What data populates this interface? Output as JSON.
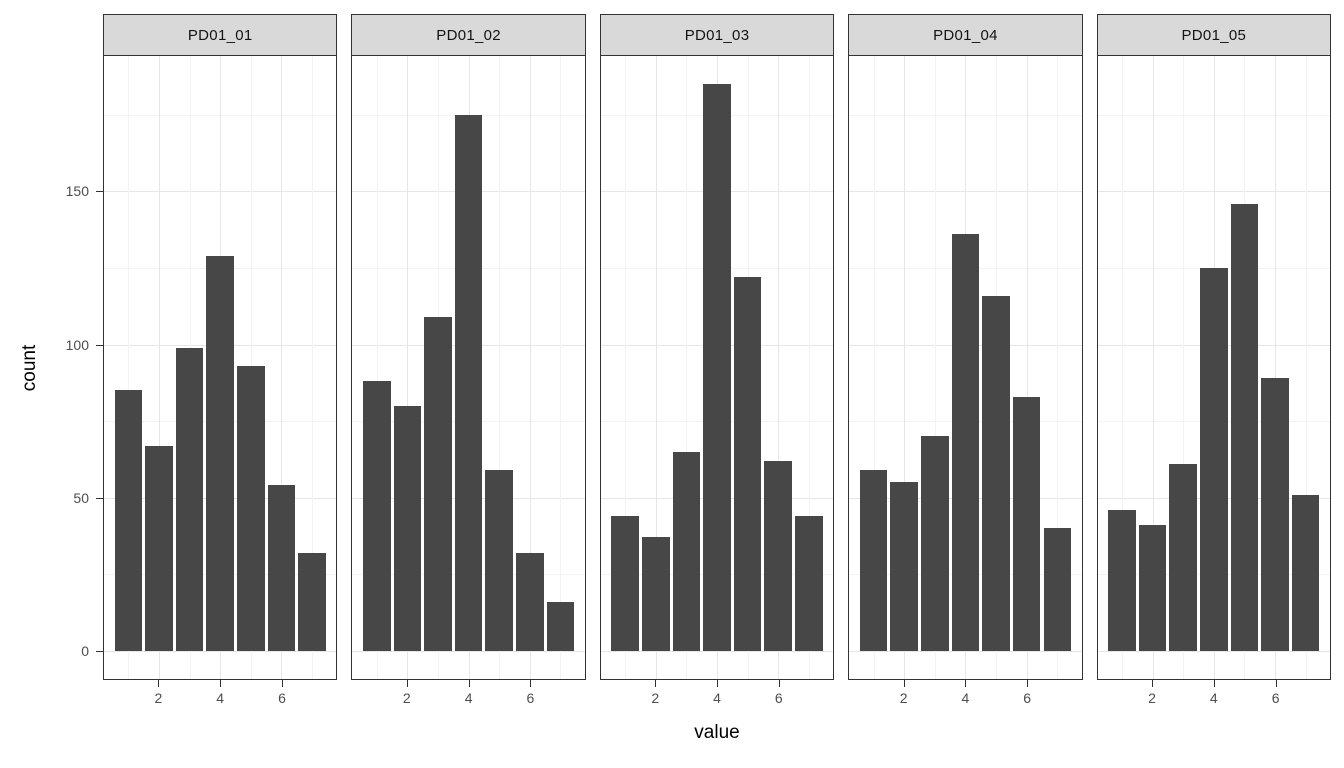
{
  "chart_data": {
    "type": "bar",
    "title": "",
    "xlabel": "value",
    "ylabel": "count",
    "facets": [
      "PD01_01",
      "PD01_02",
      "PD01_03",
      "PD01_04",
      "PD01_05"
    ],
    "x": [
      1,
      2,
      3,
      4,
      5,
      6,
      7
    ],
    "series": [
      {
        "name": "PD01_01",
        "values": [
          85,
          67,
          99,
          129,
          93,
          54,
          32
        ]
      },
      {
        "name": "PD01_02",
        "values": [
          88,
          80,
          109,
          175,
          59,
          32,
          16
        ]
      },
      {
        "name": "PD01_03",
        "values": [
          44,
          37,
          65,
          185,
          122,
          62,
          44
        ]
      },
      {
        "name": "PD01_04",
        "values": [
          59,
          55,
          70,
          136,
          116,
          83,
          40
        ]
      },
      {
        "name": "PD01_05",
        "values": [
          46,
          41,
          61,
          125,
          146,
          89,
          51
        ]
      }
    ],
    "bar_width": 0.9,
    "x_ticks": [
      2,
      4,
      6
    ],
    "y_ticks": [
      0,
      50,
      100,
      150
    ],
    "xlim": [
      0.205,
      7.795
    ],
    "ylim": [
      -9.25,
      194.25
    ],
    "grid": {
      "major_y": [
        0,
        50,
        100,
        150
      ],
      "minor_y": [
        25,
        75,
        125,
        175
      ],
      "major_x": [
        2,
        4,
        6
      ],
      "minor_x": [
        1,
        3,
        5,
        7
      ],
      "visible": true
    },
    "legend": "none",
    "style": {
      "bar_fill": "#474747",
      "strip_background": "#d9d9d9",
      "panel_border": "#333333",
      "grid_major_color": "#e6e6e6",
      "grid_minor_color": "#f3f3f3",
      "axis_text_color": "#4d4d4d",
      "axis_title_color": "#000000",
      "background": "#ffffff"
    }
  }
}
